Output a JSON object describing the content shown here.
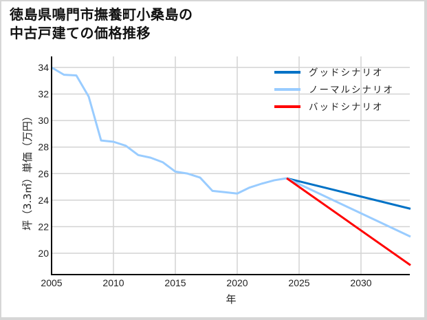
{
  "title_line1": "徳島県鳴門市撫養町小桑島の",
  "title_line2": "中古戸建ての価格推移",
  "chart_data": {
    "type": "line",
    "title": "徳島県鳴門市撫養町小桑島の中古戸建ての価格推移",
    "xlabel": "年",
    "ylabel": "坪（3.3㎡）単価（万円）",
    "xlim": [
      2005,
      2034
    ],
    "ylim": [
      18.4,
      34.3
    ],
    "x_ticks": [
      2005,
      2010,
      2015,
      2020,
      2025,
      2030
    ],
    "y_ticks": [
      20,
      22,
      24,
      26,
      28,
      30,
      32,
      34
    ],
    "grid": true,
    "legend_position": "upper right",
    "series": [
      {
        "name": "ノーマルシナリオ",
        "color": "#99ccff",
        "role": "historical",
        "x": [
          2005,
          2006,
          2007,
          2008,
          2009,
          2010,
          2011,
          2012,
          2013,
          2014,
          2015,
          2016,
          2017,
          2018,
          2019,
          2020,
          2021,
          2022,
          2023,
          2024
        ],
        "values": [
          34.0,
          33.45,
          33.4,
          31.8,
          28.5,
          28.4,
          28.1,
          27.4,
          27.2,
          26.85,
          26.15,
          26.0,
          25.7,
          24.7,
          24.6,
          24.5,
          24.95,
          25.25,
          25.5,
          25.65
        ]
      },
      {
        "name": "グッドシナリオ",
        "color": "#0072c6",
        "x": [
          2024,
          2034
        ],
        "values": [
          25.65,
          23.35
        ]
      },
      {
        "name": "ノーマルシナリオ",
        "color": "#99ccff",
        "x": [
          2024,
          2034
        ],
        "values": [
          25.65,
          21.25
        ]
      },
      {
        "name": "バッドシナリオ",
        "color": "#ff0000",
        "x": [
          2024,
          2034
        ],
        "values": [
          25.65,
          19.1
        ]
      }
    ]
  },
  "legend": [
    {
      "label": "グッドシナリオ",
      "color": "#0072c6"
    },
    {
      "label": "ノーマルシナリオ",
      "color": "#99ccff"
    },
    {
      "label": "バッドシナリオ",
      "color": "#ff0000"
    }
  ],
  "colors": {
    "grid": "#d3d3d3",
    "axis": "#000000"
  }
}
